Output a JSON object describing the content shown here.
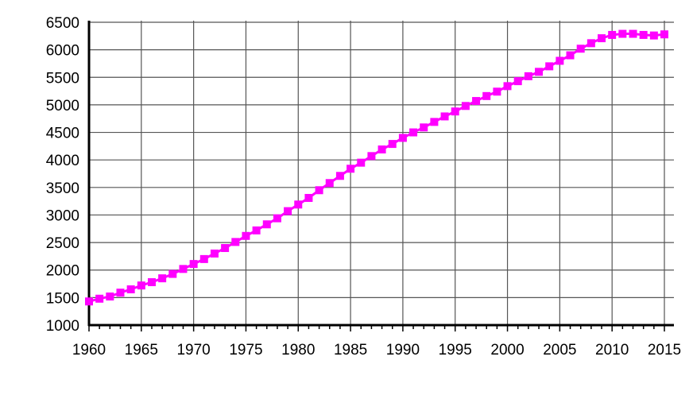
{
  "chart_data": {
    "type": "line",
    "title": "",
    "xlabel": "",
    "ylabel": "",
    "xlim": [
      1960,
      2015
    ],
    "ylim": [
      1000,
      6500
    ],
    "x_ticks": [
      1960,
      1965,
      1970,
      1975,
      1980,
      1985,
      1990,
      1995,
      2000,
      2005,
      2010,
      2015
    ],
    "y_ticks": [
      1000,
      1500,
      2000,
      2500,
      3000,
      3500,
      4000,
      4500,
      5000,
      5500,
      6000,
      6500
    ],
    "grid": true,
    "legend": "none",
    "series_color": "#ff00ff",
    "marker": "square",
    "x": [
      1960,
      1961,
      1962,
      1963,
      1964,
      1965,
      1966,
      1967,
      1968,
      1969,
      1970,
      1971,
      1972,
      1973,
      1974,
      1975,
      1976,
      1977,
      1978,
      1979,
      1980,
      1981,
      1982,
      1983,
      1984,
      1985,
      1986,
      1987,
      1988,
      1989,
      1990,
      1991,
      1992,
      1993,
      1994,
      1995,
      1996,
      1997,
      1998,
      1999,
      2000,
      2001,
      2002,
      2003,
      2004,
      2005,
      2006,
      2007,
      2008,
      2009,
      2010,
      2011,
      2012,
      2013,
      2014,
      2015
    ],
    "values": [
      1430,
      1480,
      1520,
      1590,
      1650,
      1720,
      1780,
      1850,
      1930,
      2020,
      2110,
      2200,
      2300,
      2400,
      2510,
      2620,
      2720,
      2830,
      2940,
      3070,
      3190,
      3310,
      3450,
      3580,
      3710,
      3840,
      3950,
      4070,
      4190,
      4290,
      4400,
      4500,
      4590,
      4690,
      4790,
      4880,
      4980,
      5070,
      5160,
      5240,
      5340,
      5430,
      5520,
      5600,
      5700,
      5800,
      5900,
      6020,
      6120,
      6210,
      6270,
      6290,
      6290,
      6270,
      6260,
      6280
    ]
  }
}
